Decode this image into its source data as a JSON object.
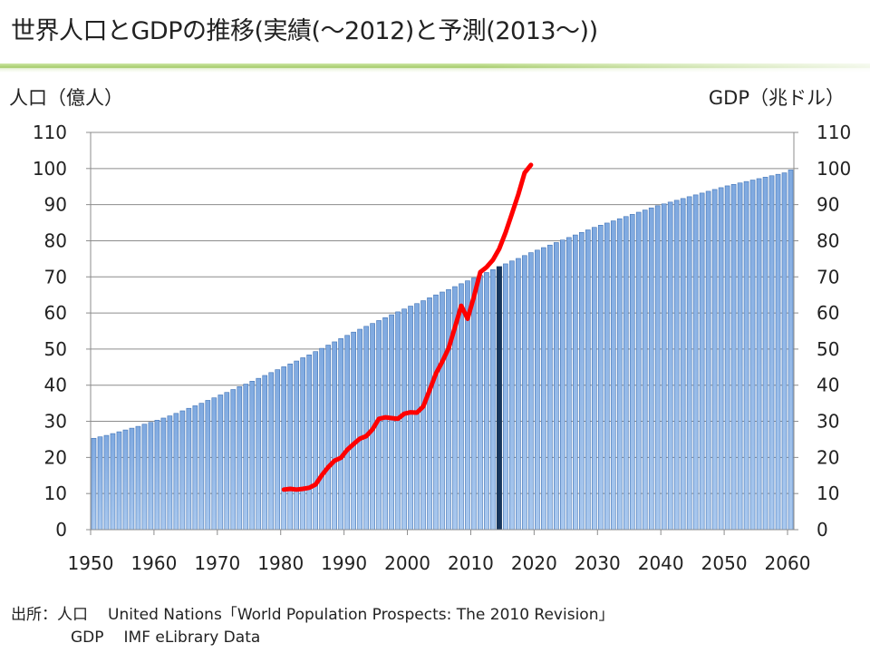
{
  "title": "世界人口とGDPの推移(実績(～2012)と予測(2013～))",
  "footer": {
    "source_label": "出所：人口",
    "population_source": "United Nations「World Population Prospects: The 2010 Revision」",
    "gdp_label": "GDP",
    "gdp_source": "IMF eLibrary Data"
  },
  "chart_data": {
    "type": "bar",
    "ylabel_left": "人口（億人）",
    "ylabel_right": "GDP（兆ドル）",
    "ylim_left": [
      0,
      110
    ],
    "ylim_right": [
      0,
      110
    ],
    "yticks": [
      0,
      10,
      20,
      30,
      40,
      50,
      60,
      70,
      80,
      90,
      100,
      110
    ],
    "xlim": [
      1950,
      2061
    ],
    "xticks": [
      1950,
      1960,
      1970,
      1980,
      1990,
      2000,
      2010,
      2020,
      2030,
      2040,
      2050,
      2060
    ],
    "grid": true,
    "colors": {
      "population_bar": "#a9c8ee",
      "population_bar_edge": "#3f72b5",
      "highlight_bar": "#17365d",
      "gdp_line": "#ff0000"
    },
    "series": [
      {
        "name": "人口",
        "axis": "left",
        "type": "bar",
        "x": [
          1950,
          1951,
          1952,
          1953,
          1954,
          1955,
          1956,
          1957,
          1958,
          1959,
          1960,
          1961,
          1962,
          1963,
          1964,
          1965,
          1966,
          1967,
          1968,
          1969,
          1970,
          1971,
          1972,
          1973,
          1974,
          1975,
          1976,
          1977,
          1978,
          1979,
          1980,
          1981,
          1982,
          1983,
          1984,
          1985,
          1986,
          1987,
          1988,
          1989,
          1990,
          1991,
          1992,
          1993,
          1994,
          1995,
          1996,
          1997,
          1998,
          1999,
          2000,
          2001,
          2002,
          2003,
          2004,
          2005,
          2006,
          2007,
          2008,
          2009,
          2010,
          2011,
          2012,
          2013,
          2014,
          2015,
          2016,
          2017,
          2018,
          2019,
          2020,
          2021,
          2022,
          2023,
          2024,
          2025,
          2026,
          2027,
          2028,
          2029,
          2030,
          2031,
          2032,
          2033,
          2034,
          2035,
          2036,
          2037,
          2038,
          2039,
          2040,
          2041,
          2042,
          2043,
          2044,
          2045,
          2046,
          2047,
          2048,
          2049,
          2050,
          2051,
          2052,
          2053,
          2054,
          2055,
          2056,
          2057,
          2058,
          2059,
          2060
        ],
        "values": [
          25.3,
          25.7,
          26.1,
          26.6,
          27.1,
          27.6,
          28.1,
          28.6,
          29.2,
          29.7,
          30.3,
          30.9,
          31.5,
          32.2,
          32.9,
          33.6,
          34.3,
          35.0,
          35.8,
          36.5,
          37.3,
          38.0,
          38.8,
          39.6,
          40.3,
          41.1,
          41.9,
          42.7,
          43.5,
          44.3,
          45.1,
          45.9,
          46.7,
          47.6,
          48.4,
          49.3,
          50.2,
          51.1,
          52.0,
          52.9,
          53.8,
          54.7,
          55.5,
          56.3,
          57.1,
          57.9,
          58.7,
          59.5,
          60.3,
          61.1,
          61.9,
          62.6,
          63.4,
          64.2,
          65.0,
          65.8,
          66.5,
          67.3,
          68.1,
          68.9,
          69.7,
          70.4,
          71.2,
          72.0,
          72.8,
          73.6,
          74.4,
          75.1,
          75.9,
          76.7,
          77.4,
          78.1,
          78.8,
          79.5,
          80.2,
          80.9,
          81.6,
          82.3,
          83.0,
          83.7,
          84.3,
          84.9,
          85.5,
          86.1,
          86.7,
          87.3,
          87.9,
          88.5,
          89.1,
          89.7,
          90.2,
          90.7,
          91.2,
          91.7,
          92.2,
          92.7,
          93.2,
          93.7,
          94.2,
          94.7,
          95.2,
          95.6,
          96.0,
          96.4,
          96.8,
          97.2,
          97.6,
          98.0,
          98.4,
          98.8,
          99.6
        ]
      },
      {
        "name": "GDP",
        "axis": "right",
        "type": "line",
        "x": [
          1980,
          1981,
          1982,
          1983,
          1984,
          1985,
          1986,
          1987,
          1988,
          1989,
          1990,
          1991,
          1992,
          1993,
          1994,
          1995,
          1996,
          1997,
          1998,
          1999,
          2000,
          2001,
          2002,
          2003,
          2004,
          2005,
          2006,
          2007,
          2008,
          2009,
          2010,
          2011,
          2012,
          2013,
          2014,
          2015,
          2016,
          2017,
          2018,
          2019
        ],
        "values": [
          11.1,
          11.3,
          11.1,
          11.3,
          11.6,
          12.5,
          15.1,
          17.3,
          19.1,
          19.9,
          22.1,
          23.7,
          25.2,
          25.9,
          27.8,
          30.7,
          31.1,
          30.9,
          30.7,
          32.1,
          32.5,
          32.4,
          34.1,
          38.6,
          43.2,
          46.5,
          50.2,
          56.0,
          62.0,
          58.4,
          64.5,
          71.3,
          72.7,
          74.7,
          77.8,
          82.3,
          87.5,
          92.8,
          98.8,
          101.0
        ]
      }
    ],
    "highlight_year": 2014
  }
}
